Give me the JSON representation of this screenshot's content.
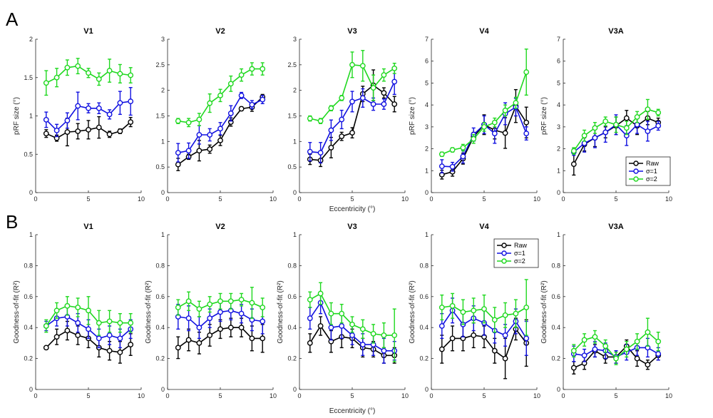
{
  "figure": {
    "panel_labels": [
      "A",
      "B"
    ],
    "shared_xlabel": "Eccentricity (°)",
    "colors": {
      "Raw": "#000000",
      "sigma1": "#1010e0",
      "sigma2": "#1fd81f",
      "axis": "#262626"
    }
  },
  "chart_data": [
    {
      "type": "line",
      "title": "V1",
      "ylabel": "pRF size (°)",
      "xlabel": "",
      "xlim": [
        0,
        10
      ],
      "xticks": [
        0,
        5,
        10
      ],
      "ylim": [
        0,
        2
      ],
      "yticks": [
        "0",
        "0.5",
        "1",
        "1.5",
        "2"
      ],
      "x": [
        1,
        2,
        3,
        4,
        5,
        6,
        7,
        8,
        9
      ],
      "series": [
        {
          "name": "Raw",
          "values": [
            0.77,
            0.71,
            0.79,
            0.8,
            0.82,
            0.85,
            0.76,
            0.8,
            0.92
          ],
          "errors": [
            0.05,
            0.04,
            0.18,
            0.1,
            0.12,
            0.14,
            0.04,
            0.03,
            0.06
          ]
        },
        {
          "name": "σ=1",
          "values": [
            0.95,
            0.81,
            0.94,
            1.13,
            1.1,
            1.1,
            1.02,
            1.17,
            1.19
          ],
          "errors": [
            0.1,
            0.08,
            0.1,
            0.18,
            0.06,
            0.07,
            0.06,
            0.15,
            0.18
          ]
        },
        {
          "name": "σ=2",
          "values": [
            1.43,
            1.5,
            1.63,
            1.65,
            1.56,
            1.48,
            1.59,
            1.55,
            1.53
          ],
          "errors": [
            0.16,
            0.12,
            0.1,
            0.1,
            0.06,
            0.08,
            0.15,
            0.12,
            0.1
          ]
        }
      ]
    },
    {
      "type": "line",
      "title": "V2",
      "ylabel": "",
      "xlabel": "",
      "xlim": [
        0,
        10
      ],
      "xticks": [
        0,
        5,
        10
      ],
      "ylim": [
        0,
        3
      ],
      "yticks": [
        "0",
        "0.5",
        "1",
        "1.5",
        "2",
        "2.5",
        "3"
      ],
      "x": [
        1,
        2,
        3,
        4,
        5,
        6,
        7,
        8,
        9
      ],
      "series": [
        {
          "name": "Raw",
          "values": [
            0.55,
            0.7,
            0.82,
            0.85,
            1.02,
            1.38,
            1.64,
            1.67,
            1.87
          ],
          "errors": [
            0.12,
            0.05,
            0.2,
            0.08,
            0.1,
            0.08,
            0.04,
            0.08,
            0.05
          ]
        },
        {
          "name": "σ=1",
          "values": [
            0.78,
            0.82,
            1.13,
            1.13,
            1.25,
            1.55,
            1.9,
            1.72,
            1.82
          ],
          "errors": [
            0.18,
            0.15,
            0.18,
            0.12,
            0.12,
            0.15,
            0.06,
            0.08,
            0.08
          ]
        },
        {
          "name": "σ=2",
          "values": [
            1.4,
            1.37,
            1.43,
            1.75,
            1.9,
            2.13,
            2.3,
            2.42,
            2.42
          ],
          "errors": [
            0.05,
            0.08,
            0.12,
            0.18,
            0.12,
            0.15,
            0.12,
            0.12,
            0.12
          ]
        }
      ]
    },
    {
      "type": "line",
      "title": "V3",
      "ylabel": "",
      "xlabel": "",
      "xlim": [
        0,
        10
      ],
      "xticks": [
        0,
        5,
        10
      ],
      "ylim": [
        0,
        3
      ],
      "yticks": [
        "0",
        "0.5",
        "1",
        "1.5",
        "2",
        "2.5",
        "3"
      ],
      "x": [
        1,
        2,
        3,
        4,
        5,
        6,
        7,
        8,
        9
      ],
      "series": [
        {
          "name": "Raw",
          "values": [
            0.65,
            0.63,
            0.88,
            1.1,
            1.17,
            1.93,
            2.1,
            1.95,
            1.73
          ],
          "errors": [
            0.1,
            0.12,
            0.2,
            0.08,
            0.1,
            0.15,
            0.3,
            0.1,
            0.15
          ]
        },
        {
          "name": "σ=1",
          "values": [
            0.8,
            0.78,
            1.22,
            1.43,
            1.78,
            1.85,
            1.73,
            1.73,
            2.17
          ],
          "errors": [
            0.18,
            0.2,
            0.2,
            0.18,
            0.2,
            0.18,
            0.12,
            0.1,
            0.25
          ]
        },
        {
          "name": "σ=2",
          "values": [
            1.45,
            1.4,
            1.65,
            1.85,
            2.5,
            2.48,
            2.05,
            2.3,
            2.43
          ],
          "errors": [
            0.05,
            0.05,
            0.05,
            0.05,
            0.25,
            0.3,
            0.25,
            0.12,
            0.1
          ]
        }
      ]
    },
    {
      "type": "line",
      "title": "V4",
      "ylabel": "pRF size (°)",
      "xlabel": "",
      "xlim": [
        0,
        10
      ],
      "xticks": [
        0,
        5,
        10
      ],
      "ylim": [
        0,
        7
      ],
      "yticks": [
        "0",
        "1",
        "2",
        "3",
        "4",
        "5",
        "6",
        "7"
      ],
      "x": [
        1,
        2,
        3,
        4,
        5,
        6,
        7,
        8,
        9
      ],
      "series": [
        {
          "name": "Raw",
          "values": [
            0.82,
            0.95,
            1.55,
            2.55,
            3.1,
            2.85,
            2.72,
            3.95,
            3.2
          ],
          "errors": [
            0.2,
            0.2,
            0.25,
            0.2,
            0.45,
            0.4,
            0.7,
            0.75,
            0.7
          ]
        },
        {
          "name": "σ=1",
          "values": [
            1.2,
            1.18,
            1.65,
            2.65,
            3.1,
            2.7,
            3.6,
            3.9,
            2.7
          ],
          "errors": [
            0.3,
            0.2,
            0.3,
            0.3,
            0.4,
            0.45,
            0.5,
            0.4,
            0.3
          ]
        },
        {
          "name": "σ=2",
          "values": [
            1.75,
            1.95,
            2.05,
            2.45,
            3.0,
            3.2,
            3.75,
            4.1,
            5.5
          ],
          "errors": [
            0.1,
            0.1,
            0.15,
            0.2,
            0.2,
            0.2,
            0.25,
            0.25,
            1.05
          ]
        }
      ]
    },
    {
      "type": "line",
      "title": "V3A",
      "ylabel": "pRF size (°)",
      "xlabel": "",
      "xlim": [
        0,
        10
      ],
      "xticks": [
        0,
        5,
        10
      ],
      "ylim": [
        0,
        7
      ],
      "yticks": [
        "0",
        "1",
        "2",
        "3",
        "4",
        "5",
        "6",
        "7"
      ],
      "x": [
        1,
        2,
        3,
        4,
        5,
        6,
        7,
        8,
        9
      ],
      "series": [
        {
          "name": "Raw",
          "values": [
            1.3,
            2.2,
            2.5,
            2.75,
            3.05,
            3.4,
            3.05,
            3.4,
            3.2
          ],
          "errors": [
            0.5,
            0.3,
            0.4,
            0.25,
            0.4,
            0.35,
            0.4,
            0.3,
            0.2
          ]
        },
        {
          "name": "σ=1",
          "values": [
            1.85,
            2.25,
            2.5,
            2.75,
            3.1,
            2.6,
            3.1,
            2.8,
            3.05
          ],
          "errors": [
            0.15,
            0.4,
            0.45,
            0.45,
            0.45,
            0.45,
            0.4,
            0.45,
            0.2
          ]
        },
        {
          "name": "σ=2",
          "values": [
            1.9,
            2.6,
            2.95,
            3.25,
            3.1,
            2.95,
            3.45,
            3.8,
            3.65
          ],
          "errors": [
            0.15,
            0.25,
            0.25,
            0.2,
            0.35,
            0.3,
            0.25,
            0.45,
            0.15
          ]
        }
      ],
      "legend": {
        "entries": [
          "Raw",
          "σ=1",
          "σ=2"
        ],
        "location": "bottom-right"
      }
    },
    {
      "type": "line",
      "title": "V1",
      "ylabel": "Goodness-of-fit (R²)",
      "xlabel": "",
      "xlim": [
        0,
        10
      ],
      "xticks": [
        0,
        5,
        10
      ],
      "ylim": [
        0,
        1
      ],
      "yticks": [
        "0",
        "0.2",
        "0.4",
        "0.6",
        "0.8",
        "1"
      ],
      "x": [
        1,
        2,
        3,
        4,
        5,
        6,
        7,
        8,
        9
      ],
      "series": [
        {
          "name": "Raw",
          "values": [
            0.27,
            0.34,
            0.38,
            0.35,
            0.33,
            0.27,
            0.25,
            0.24,
            0.29
          ],
          "errors": [
            0.01,
            0.05,
            0.06,
            0.06,
            0.06,
            0.06,
            0.06,
            0.07,
            0.07
          ]
        },
        {
          "name": "σ=1",
          "values": [
            0.41,
            0.46,
            0.47,
            0.43,
            0.39,
            0.33,
            0.35,
            0.33,
            0.39
          ],
          "errors": [
            0.03,
            0.05,
            0.06,
            0.06,
            0.06,
            0.06,
            0.06,
            0.06,
            0.06
          ]
        },
        {
          "name": "σ=2",
          "values": [
            0.41,
            0.51,
            0.54,
            0.53,
            0.51,
            0.43,
            0.44,
            0.43,
            0.43
          ],
          "errors": [
            0.04,
            0.05,
            0.06,
            0.06,
            0.09,
            0.08,
            0.07,
            0.06,
            0.06
          ]
        }
      ]
    },
    {
      "type": "line",
      "title": "V2",
      "ylabel": "Goodness-of-fit (R²)",
      "xlabel": "",
      "xlim": [
        0,
        10
      ],
      "xticks": [
        0,
        5,
        10
      ],
      "ylim": [
        0,
        1
      ],
      "yticks": [
        "0",
        "0.2",
        "0.4",
        "0.6",
        "0.8",
        "1"
      ],
      "x": [
        1,
        2,
        3,
        4,
        5,
        6,
        7,
        8,
        9
      ],
      "series": [
        {
          "name": "Raw",
          "values": [
            0.27,
            0.32,
            0.3,
            0.35,
            0.39,
            0.4,
            0.4,
            0.33,
            0.33
          ],
          "errors": [
            0.07,
            0.07,
            0.07,
            0.07,
            0.06,
            0.06,
            0.06,
            0.08,
            0.09
          ]
        },
        {
          "name": "σ=1",
          "values": [
            0.47,
            0.46,
            0.4,
            0.46,
            0.5,
            0.51,
            0.49,
            0.45,
            0.44
          ],
          "errors": [
            0.08,
            0.08,
            0.07,
            0.06,
            0.06,
            0.06,
            0.06,
            0.07,
            0.08
          ]
        },
        {
          "name": "σ=2",
          "values": [
            0.53,
            0.57,
            0.52,
            0.55,
            0.57,
            0.57,
            0.58,
            0.56,
            0.53
          ],
          "errors": [
            0.05,
            0.06,
            0.05,
            0.05,
            0.05,
            0.05,
            0.04,
            0.1,
            0.06
          ]
        }
      ]
    },
    {
      "type": "line",
      "title": "V3",
      "ylabel": "Goodness-of-fit (R²)",
      "xlabel": "",
      "xlim": [
        0,
        10
      ],
      "xticks": [
        0,
        5,
        10
      ],
      "ylim": [
        0,
        1
      ],
      "yticks": [
        "0",
        "0.2",
        "0.4",
        "0.6",
        "0.8",
        "1"
      ],
      "x": [
        1,
        2,
        3,
        4,
        5,
        6,
        7,
        8,
        9
      ],
      "series": [
        {
          "name": "Raw",
          "values": [
            0.3,
            0.41,
            0.31,
            0.34,
            0.33,
            0.27,
            0.26,
            0.22,
            0.22
          ],
          "errors": [
            0.06,
            0.06,
            0.07,
            0.07,
            0.06,
            0.06,
            0.05,
            0.05,
            0.05
          ]
        },
        {
          "name": "σ=1",
          "values": [
            0.46,
            0.56,
            0.4,
            0.41,
            0.35,
            0.29,
            0.29,
            0.25,
            0.25
          ],
          "errors": [
            0.07,
            0.07,
            0.08,
            0.08,
            0.06,
            0.07,
            0.07,
            0.08,
            0.06
          ]
        },
        {
          "name": "σ=2",
          "values": [
            0.58,
            0.62,
            0.49,
            0.49,
            0.42,
            0.39,
            0.36,
            0.35,
            0.35
          ],
          "errors": [
            0.05,
            0.07,
            0.07,
            0.06,
            0.05,
            0.06,
            0.06,
            0.08,
            0.17
          ]
        }
      ]
    },
    {
      "type": "line",
      "title": "V4",
      "ylabel": "Goodness-of-fit (R²)",
      "xlabel": "",
      "xlim": [
        0,
        10
      ],
      "xticks": [
        0,
        5,
        10
      ],
      "ylim": [
        0,
        1
      ],
      "yticks": [
        "0",
        "0.2",
        "0.4",
        "0.6",
        "0.8",
        "1"
      ],
      "x": [
        1,
        2,
        3,
        4,
        5,
        6,
        7,
        8,
        9
      ],
      "series": [
        {
          "name": "Raw",
          "values": [
            0.26,
            0.33,
            0.33,
            0.35,
            0.34,
            0.25,
            0.2,
            0.39,
            0.3
          ],
          "errors": [
            0.09,
            0.08,
            0.08,
            0.08,
            0.07,
            0.08,
            0.13,
            0.07,
            0.15
          ]
        },
        {
          "name": "σ=1",
          "values": [
            0.41,
            0.51,
            0.42,
            0.46,
            0.43,
            0.38,
            0.35,
            0.44,
            0.33
          ],
          "errors": [
            0.08,
            0.08,
            0.08,
            0.08,
            0.08,
            0.08,
            0.07,
            0.08,
            0.11
          ]
        },
        {
          "name": "σ=2",
          "values": [
            0.53,
            0.54,
            0.5,
            0.51,
            0.52,
            0.45,
            0.48,
            0.49,
            0.53
          ],
          "errors": [
            0.08,
            0.08,
            0.08,
            0.08,
            0.09,
            0.08,
            0.08,
            0.09,
            0.18
          ]
        }
      ],
      "legend": {
        "entries": [
          "Raw",
          "σ=1",
          "σ=2"
        ],
        "location": "top-right"
      }
    },
    {
      "type": "line",
      "title": "V3A",
      "ylabel": "Goodness-of-fit (R²)",
      "xlabel": "",
      "xlim": [
        0,
        10
      ],
      "xticks": [
        0,
        5,
        10
      ],
      "ylim": [
        0,
        1
      ],
      "yticks": [
        "0",
        "0.2",
        "0.4",
        "0.6",
        "0.8",
        "1"
      ],
      "x": [
        1,
        2,
        3,
        4,
        5,
        6,
        7,
        8,
        9
      ],
      "series": [
        {
          "name": "Raw",
          "values": [
            0.14,
            0.17,
            0.25,
            0.21,
            0.21,
            0.28,
            0.2,
            0.16,
            0.22
          ],
          "errors": [
            0.04,
            0.04,
            0.04,
            0.04,
            0.04,
            0.04,
            0.05,
            0.03,
            0.03
          ]
        },
        {
          "name": "σ=1",
          "values": [
            0.23,
            0.22,
            0.26,
            0.25,
            0.21,
            0.24,
            0.27,
            0.27,
            0.23
          ],
          "errors": [
            0.05,
            0.04,
            0.05,
            0.05,
            0.04,
            0.05,
            0.05,
            0.06,
            0.04
          ]
        },
        {
          "name": "σ=2",
          "values": [
            0.25,
            0.32,
            0.34,
            0.28,
            0.2,
            0.26,
            0.31,
            0.37,
            0.31
          ],
          "errors": [
            0.04,
            0.04,
            0.04,
            0.04,
            0.04,
            0.05,
            0.05,
            0.09,
            0.06
          ]
        }
      ]
    }
  ]
}
